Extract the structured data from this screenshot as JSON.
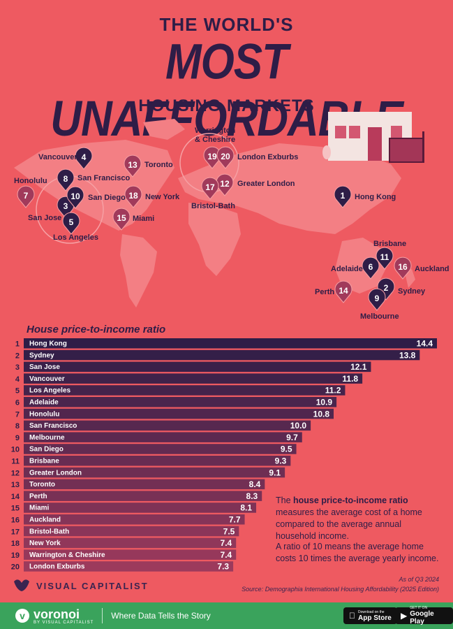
{
  "header": {
    "line1": "THE WORLD'S",
    "line2": "MOST UNAFFORDABLE",
    "line3": "HOUSING MARKETS"
  },
  "markers": [
    {
      "rank": "1",
      "city": "Hong Kong"
    },
    {
      "rank": "2",
      "city": "Sydney"
    },
    {
      "rank": "3",
      "city": "San Jose"
    },
    {
      "rank": "4",
      "city": "Vancouver"
    },
    {
      "rank": "5",
      "city": "Los Angeles"
    },
    {
      "rank": "6",
      "city": "Adelaide"
    },
    {
      "rank": "7",
      "city": "Honolulu"
    },
    {
      "rank": "8",
      "city": "San Francisco"
    },
    {
      "rank": "9",
      "city": "Melbourne"
    },
    {
      "rank": "10",
      "city": "San Diego"
    },
    {
      "rank": "11",
      "city": "Brisbane"
    },
    {
      "rank": "12",
      "city": "Greater London"
    },
    {
      "rank": "13",
      "city": "Toronto"
    },
    {
      "rank": "14",
      "city": "Perth"
    },
    {
      "rank": "15",
      "city": "Miami"
    },
    {
      "rank": "16",
      "city": "Auckland"
    },
    {
      "rank": "17",
      "city": "Bristol-Bath"
    },
    {
      "rank": "18",
      "city": "New York"
    },
    {
      "rank": "19",
      "city": "Warrington & Cheshire"
    },
    {
      "rank": "20",
      "city": "London Exburbs"
    }
  ],
  "chart_data": {
    "type": "bar",
    "title": "House price-to-income ratio",
    "orientation": "horizontal",
    "categories": [
      "Hong Kong",
      "Sydney",
      "San Jose",
      "Vancouver",
      "Los Angeles",
      "Adelaide",
      "Honolulu",
      "San Francisco",
      "Melbourne",
      "San Diego",
      "Brisbane",
      "Greater London",
      "Toronto",
      "Perth",
      "Miami",
      "Auckland",
      "Bristol-Bath",
      "New York",
      "Warrington & Cheshire",
      "London Exburbs"
    ],
    "ranks": [
      "1",
      "2",
      "3",
      "4",
      "5",
      "6",
      "7",
      "8",
      "9",
      "10",
      "11",
      "12",
      "13",
      "14",
      "15",
      "16",
      "17",
      "18",
      "19",
      "20"
    ],
    "values": [
      14.4,
      13.8,
      12.1,
      11.8,
      11.2,
      10.9,
      10.8,
      10.0,
      9.7,
      9.5,
      9.3,
      9.1,
      8.4,
      8.3,
      8.1,
      7.7,
      7.5,
      7.4,
      7.4,
      7.3
    ],
    "value_labels": [
      "14.4",
      "13.8",
      "12.1",
      "11.8",
      "11.2",
      "10.9",
      "10.8",
      "10.0",
      "9.7",
      "9.5",
      "9.3",
      "9.1",
      "8.4",
      "8.3",
      "8.1",
      "7.7",
      "7.5",
      "7.4",
      "7.4",
      "7.3"
    ],
    "xlim": [
      0,
      14.4
    ],
    "colors": {
      "dark": "#2e1d47",
      "light": "#9c3a5c"
    }
  },
  "note": {
    "p1_pre": "The ",
    "p1_bold": "house price-to-income ratio",
    "p1_post": " measures the average cost of a home compared to the average annual household income.",
    "p2": "A ratio of 10 means the average home costs 10 times the average yearly income."
  },
  "footnote": {
    "as_of": "As of Q3 2024",
    "source": "Source: Demographia International Housing Affordability (2025 Edition)"
  },
  "brand": {
    "vc": "VISUAL CAPITALIST",
    "voronoi": "voronoi",
    "voronoi_sub": "BY VISUAL CAPITALIST",
    "tagline": "Where Data Tells the Story",
    "appstore_small": "Download on the",
    "appstore_big": "App Store",
    "gplay_small": "GET IT ON",
    "gplay_big": "Google Play"
  }
}
